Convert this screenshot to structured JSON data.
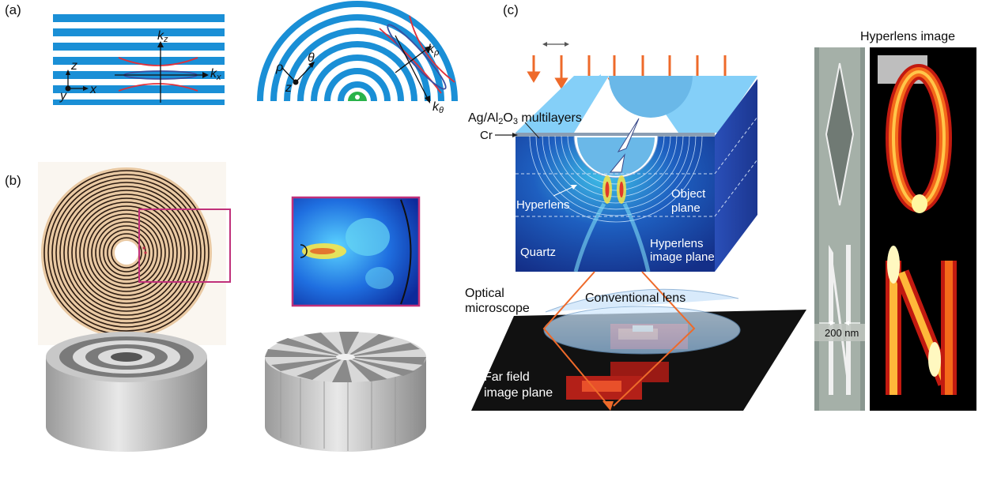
{
  "panels": {
    "a": {
      "label": "(a)",
      "left": {
        "kz": "k",
        "kz_sub": "z",
        "kx": "k",
        "kx_sub": "x",
        "z": "z",
        "x": "x",
        "y": "y"
      },
      "right": {
        "rho": "ρ",
        "theta": "θ",
        "z": "z",
        "krho": "k",
        "krho_sub": "ρ",
        "ktheta": "k",
        "ktheta_sub": "θ"
      }
    },
    "b": {
      "label": "(b)"
    },
    "c": {
      "label": "(c)",
      "hyperlens_image_title": "Hyperlens image",
      "multilayers_label_1": "Ag/Al",
      "multilayers_sub_1": "2",
      "multilayers_label_2": "O",
      "multilayers_sub_2": "3",
      "multilayers_label_3": " multilayers",
      "cr": "Cr",
      "hyperlens": "Hyperlens",
      "object_plane_1": "Object",
      "object_plane_2": "plane",
      "quartz": "Quartz",
      "image_plane_1": "Hyperlens",
      "image_plane_2": "image plane",
      "optical_1": "Optical",
      "optical_2": "microscope",
      "conventional_lens": "Conventional lens",
      "far_field_1": "Far field",
      "far_field_2": "image plane",
      "scale_bar": "200 nm"
    }
  },
  "colors": {
    "stripe_blue": "#1a8fd6",
    "hyperbola_red": "#e0303a",
    "ellipse_blue": "#3a4fa0",
    "arrow_orange": "#ee6a2a",
    "lens_bg": "#1e3b8a",
    "ring_tan": "#e9c9a3"
  }
}
